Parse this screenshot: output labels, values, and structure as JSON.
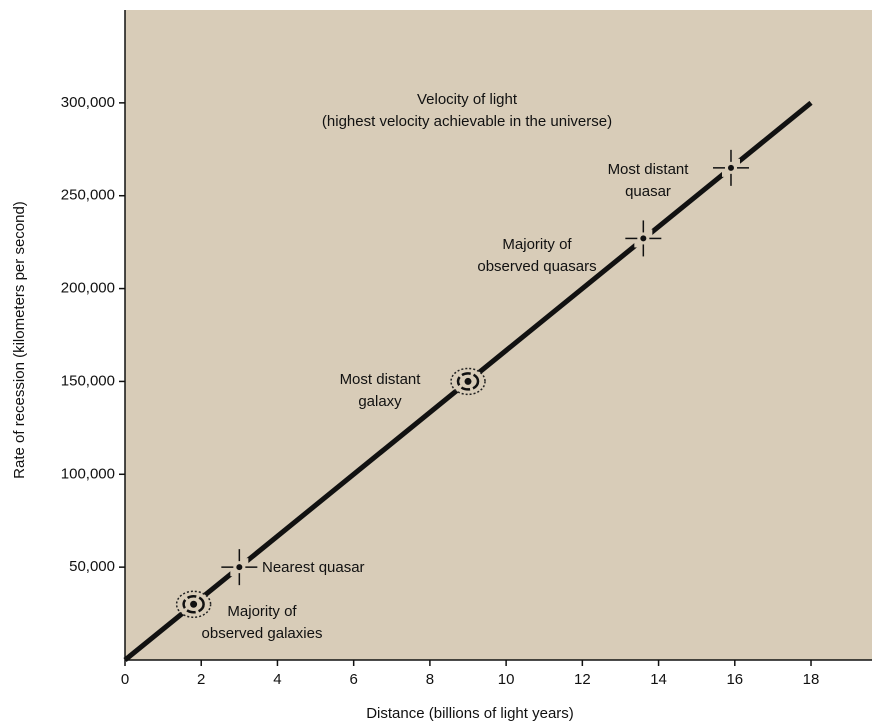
{
  "chart_data": {
    "type": "line",
    "xlabel": "Distance (billions of light years)",
    "ylabel": "Rate of recession (kilometers per second)",
    "xlim": [
      0,
      19.6
    ],
    "ylim": [
      0,
      350000
    ],
    "xticks": [
      0,
      2,
      4,
      6,
      8,
      10,
      12,
      14,
      16,
      18
    ],
    "yticks": [
      {
        "value": 50000,
        "label": "50,000"
      },
      {
        "value": 100000,
        "label": "100,000"
      },
      {
        "value": 150000,
        "label": "150,000"
      },
      {
        "value": 200000,
        "label": "200,000"
      },
      {
        "value": 250000,
        "label": "250,000"
      },
      {
        "value": 300000,
        "label": "300,000"
      }
    ],
    "series": [
      {
        "color": "#111111",
        "x": [
          0,
          18
        ],
        "values": [
          0,
          300000
        ]
      }
    ],
    "annotation": [
      "Velocity of light",
      "(highest velocity achievable in the universe)"
    ],
    "points": [
      {
        "label": [
          "Majority of",
          "observed galaxies"
        ],
        "x": 1.8,
        "y": 30000,
        "marker": "spiral"
      },
      {
        "label": [
          "Nearest quasar"
        ],
        "x": 3.0,
        "y": 50000,
        "marker": "cross"
      },
      {
        "label": [
          "Most distant",
          "galaxy"
        ],
        "x": 9.0,
        "y": 150000,
        "marker": "spiral"
      },
      {
        "label": [
          "Majority of",
          "observed quasars"
        ],
        "x": 13.6,
        "y": 227000,
        "marker": "cross"
      },
      {
        "label": [
          "Most distant",
          "quasar"
        ],
        "x": 15.9,
        "y": 265000,
        "marker": "cross"
      }
    ]
  }
}
